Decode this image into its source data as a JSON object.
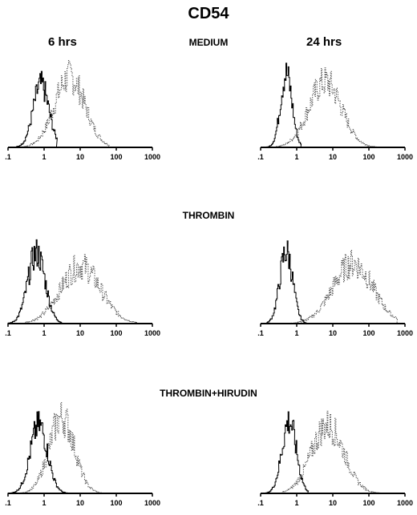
{
  "title": "CD54",
  "col_labels": [
    "6 hrs",
    "24 hrs"
  ],
  "chart_data": {
    "type": "line",
    "title": "CD54",
    "x_scale": "log",
    "x_ticks": [
      ".1",
      "1",
      "10",
      "100",
      "1000"
    ],
    "xlim": [
      0.1,
      1000
    ],
    "rows": [
      "MEDIUM",
      "THROMBIN",
      "THROMBIN+HIRUDIN"
    ],
    "columns": [
      "6 hrs",
      "24 hrs"
    ],
    "series_styles": [
      {
        "style": "solid",
        "color": "#000000"
      },
      {
        "style": "dotted",
        "color": "#444444"
      }
    ],
    "panels": [
      {
        "row": "MEDIUM",
        "column": "6 hrs",
        "solid": {
          "peak_x": 0.8,
          "spread": 0.22,
          "height": 0.78,
          "min_x": 0.1,
          "max_x": 2.2
        },
        "dotted": {
          "peak_x": 5,
          "spread": 0.42,
          "height": 0.88,
          "min_x": 0.15,
          "max_x": 60
        }
      },
      {
        "row": "MEDIUM",
        "column": "24 hrs",
        "solid": {
          "peak_x": 0.5,
          "spread": 0.16,
          "height": 0.92,
          "min_x": 0.1,
          "max_x": 1.3
        },
        "dotted": {
          "peak_x": 6,
          "spread": 0.45,
          "height": 0.82,
          "min_x": 0.25,
          "max_x": 180
        }
      },
      {
        "row": "THROMBIN",
        "column": "6 hrs",
        "solid": {
          "peak_x": 0.6,
          "spread": 0.24,
          "height": 0.88,
          "min_x": 0.1,
          "max_x": 3
        },
        "dotted": {
          "peak_x": 10,
          "spread": 0.55,
          "height": 0.72,
          "min_x": 0.3,
          "max_x": 350
        }
      },
      {
        "row": "THROMBIN",
        "column": "24 hrs",
        "solid": {
          "peak_x": 0.5,
          "spread": 0.18,
          "height": 0.9,
          "min_x": 0.15,
          "max_x": 1.8
        },
        "dotted": {
          "peak_x": 35,
          "spread": 0.55,
          "height": 0.75,
          "min_x": 0.5,
          "max_x": 600
        }
      },
      {
        "row": "THROMBIN+HIRUDIN",
        "column": "6 hrs",
        "solid": {
          "peak_x": 0.7,
          "spread": 0.24,
          "height": 0.85,
          "min_x": 0.1,
          "max_x": 4
        },
        "dotted": {
          "peak_x": 3,
          "spread": 0.35,
          "height": 0.95,
          "min_x": 0.2,
          "max_x": 60
        }
      },
      {
        "row": "THROMBIN+HIRUDIN",
        "column": "24 hrs",
        "solid": {
          "peak_x": 0.6,
          "spread": 0.2,
          "height": 0.9,
          "min_x": 0.1,
          "max_x": 2
        },
        "dotted": {
          "peak_x": 7,
          "spread": 0.45,
          "height": 0.85,
          "min_x": 0.4,
          "max_x": 600
        }
      }
    ]
  }
}
